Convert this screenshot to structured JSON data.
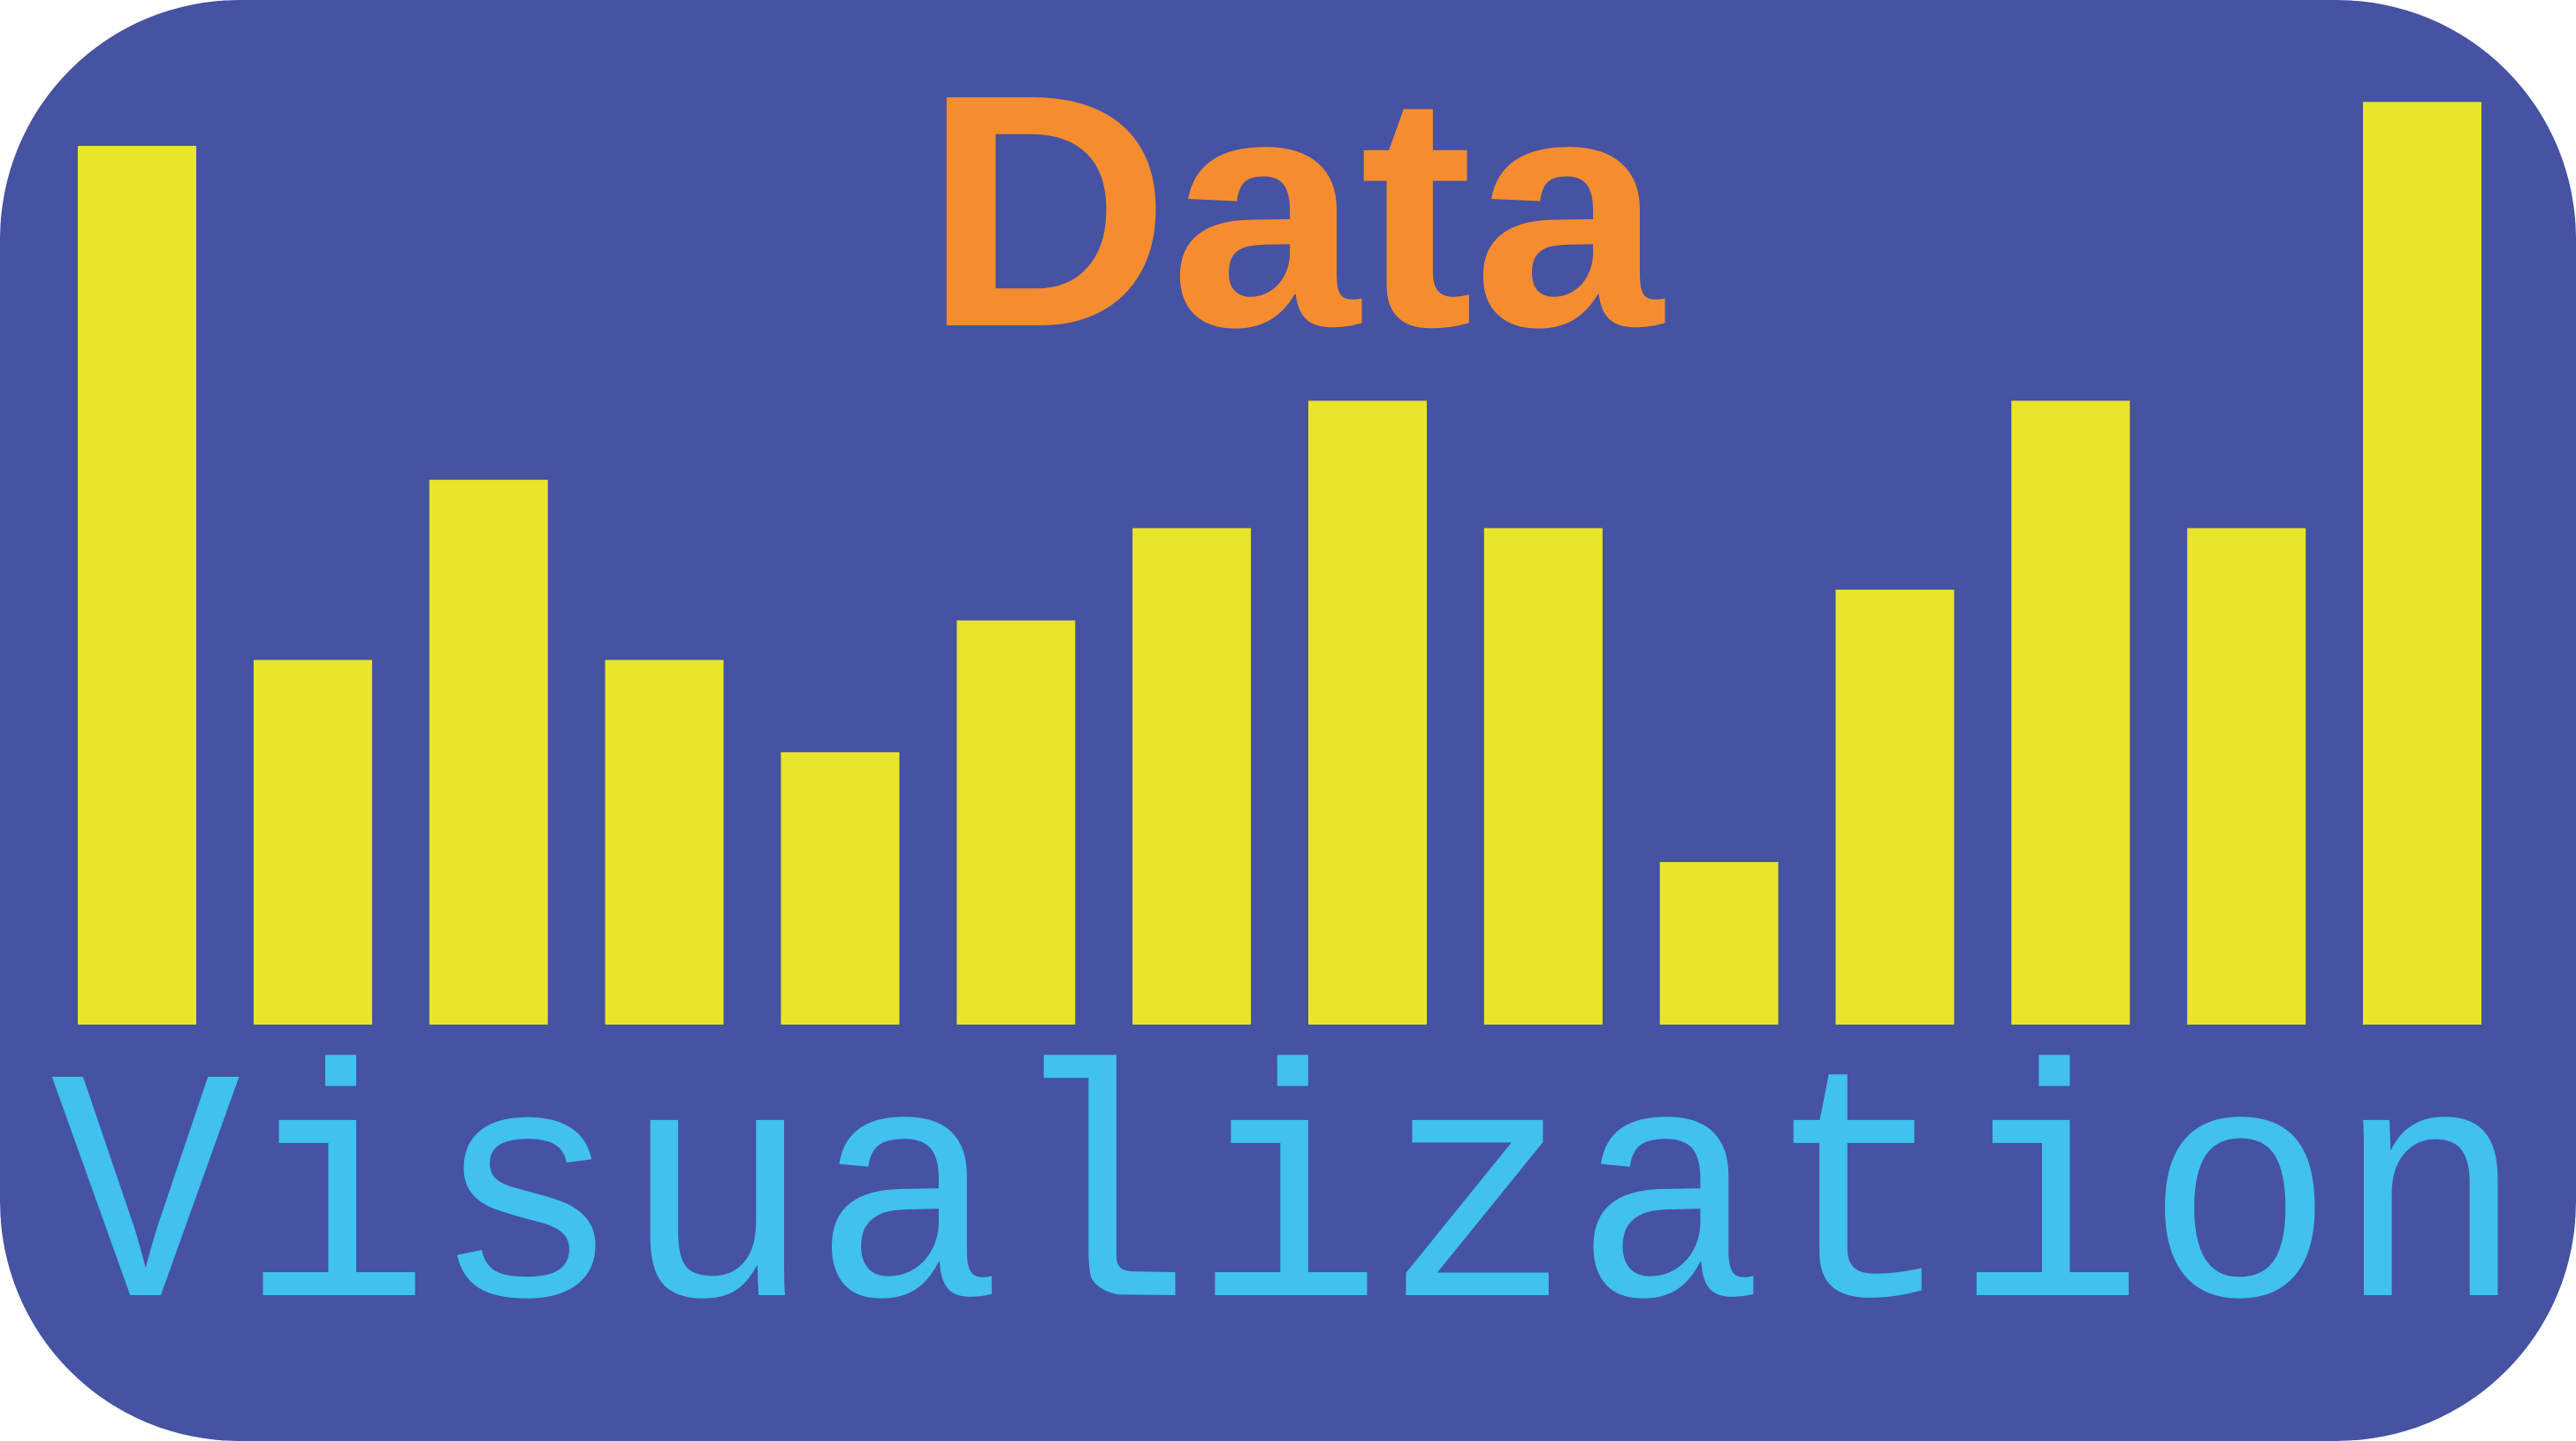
{
  "logo": {
    "title": "Data",
    "subtitle": "Visualization",
    "colors": {
      "background": "#4652A2",
      "bars": "#E8E52C",
      "title": "#F58D30",
      "subtitle": "#40C1EE"
    }
  },
  "chart_data": {
    "type": "bar",
    "values": [
      100,
      41.5,
      62,
      41.5,
      31,
      46,
      56.5,
      71,
      56.5,
      18.5,
      49.5,
      71,
      56.5,
      105
    ]
  }
}
